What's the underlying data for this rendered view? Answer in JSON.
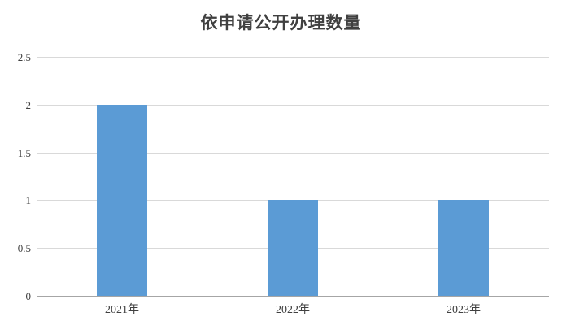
{
  "chart_data": {
    "type": "bar",
    "title": "依申请公开办理数量",
    "categories": [
      "2021年",
      "2022年",
      "2023年"
    ],
    "values": [
      2,
      1,
      1
    ],
    "xlabel": "",
    "ylabel": "",
    "ylim": [
      0,
      2.5
    ],
    "ytick_labels": [
      "0",
      "0.5",
      "1",
      "1.5",
      "2",
      "2.5"
    ],
    "grid": "horizontal",
    "legend": "none",
    "bar_color": "#5b9bd5",
    "gridline_color": "#d9d9d9",
    "axis_color": "#a6a6a6",
    "text_color": "#404040"
  }
}
